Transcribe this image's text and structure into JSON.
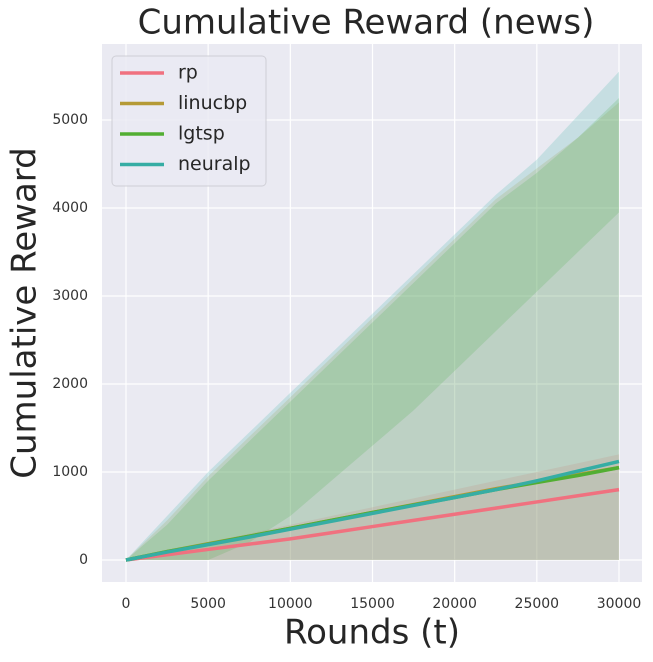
{
  "chart_data": {
    "type": "line",
    "title": "Cumulative Reward (news)",
    "x_label": "Rounds (t)",
    "y_label": "Cumulative Reward",
    "x": [
      0,
      2500,
      5000,
      7500,
      10000,
      12500,
      15000,
      17500,
      20000,
      22500,
      25000,
      27500,
      30000
    ],
    "series": [
      {
        "name": "rp",
        "color": "#f0717f",
        "values": [
          0,
          60,
          120,
          180,
          240,
          310,
          380,
          450,
          520,
          590,
          660,
          730,
          800
        ],
        "lower": [
          0,
          0,
          0,
          0,
          0,
          0,
          0,
          0,
          0,
          0,
          0,
          0,
          0
        ],
        "upper": [
          0,
          100,
          200,
          300,
          400,
          500,
          600,
          700,
          800,
          900,
          1000,
          1100,
          1200
        ]
      },
      {
        "name": "linucbp",
        "color": "#b59a36",
        "values": [
          0,
          95,
          185,
          270,
          360,
          450,
          540,
          630,
          720,
          810,
          890,
          970,
          1050
        ],
        "lower": [
          0,
          0,
          0,
          0,
          0,
          0,
          0,
          0,
          0,
          0,
          0,
          0,
          0
        ],
        "upper": [
          0,
          450,
          950,
          1400,
          1850,
          2300,
          2750,
          3200,
          3650,
          4100,
          4450,
          4800,
          5200
        ]
      },
      {
        "name": "lgtsp",
        "color": "#52ae32",
        "values": [
          0,
          95,
          180,
          270,
          360,
          450,
          540,
          625,
          710,
          800,
          880,
          960,
          1050
        ],
        "lower": [
          0,
          0,
          0,
          200,
          500,
          900,
          1300,
          1700,
          2150,
          2600,
          3050,
          3500,
          3950
        ],
        "upper": [
          0,
          400,
          900,
          1350,
          1800,
          2250,
          2700,
          3150,
          3600,
          4050,
          4400,
          4800,
          5250
        ]
      },
      {
        "name": "neuralp",
        "color": "#36ada4",
        "values": [
          0,
          90,
          175,
          260,
          350,
          440,
          530,
          620,
          710,
          800,
          900,
          1010,
          1120
        ],
        "lower": [
          0,
          0,
          0,
          0,
          0,
          0,
          0,
          0,
          0,
          0,
          0,
          0,
          0
        ],
        "upper": [
          0,
          500,
          1000,
          1450,
          1900,
          2350,
          2800,
          3250,
          3700,
          4150,
          4550,
          5050,
          5550
        ]
      }
    ],
    "xlim": [
      -1460,
      31400
    ],
    "ylim": [
      -250,
      5864
    ],
    "xticks": [
      0,
      5000,
      10000,
      15000,
      20000,
      25000,
      30000
    ],
    "yticks": [
      0,
      1000,
      2000,
      3000,
      4000,
      5000
    ],
    "grid": true,
    "legend_position": "upper-left"
  }
}
